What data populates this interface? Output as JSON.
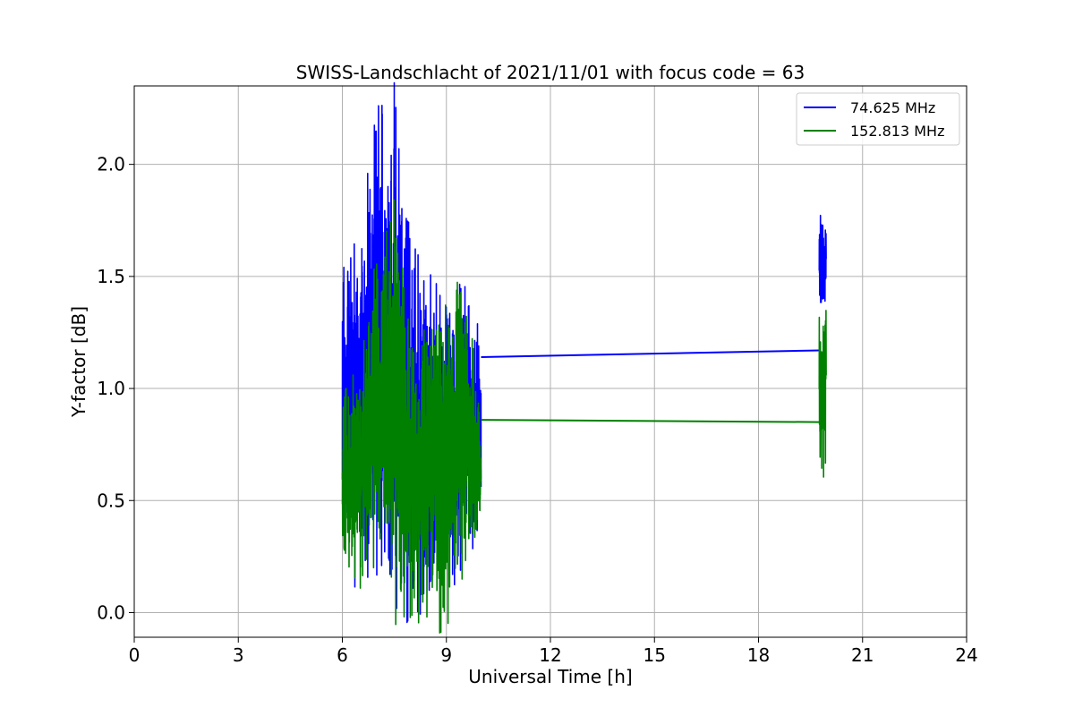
{
  "chart_data": {
    "type": "line",
    "title": "SWISS-Landschlacht of 2021/11/01 with focus code = 63",
    "xlabel": "Universal Time [h]",
    "ylabel": "Y-factor [dB]",
    "xlim": [
      0,
      24
    ],
    "ylim": [
      -0.11,
      2.35
    ],
    "xticks": [
      0,
      3,
      6,
      9,
      12,
      15,
      18,
      21,
      24
    ],
    "xtick_labels": [
      "0",
      "3",
      "6",
      "9",
      "12",
      "15",
      "18",
      "21",
      "24"
    ],
    "yticks": [
      0.0,
      0.5,
      1.0,
      1.5,
      2.0
    ],
    "ytick_labels": [
      "0.0",
      "0.5",
      "1.0",
      "1.5",
      "2.0"
    ],
    "grid": true,
    "legend_position": "top-right",
    "series": [
      {
        "name": "74.625 MHz",
        "legend_label": "  74.625 MHz",
        "color": "#0000ff",
        "bursts": [
          {
            "x_start": 6.0,
            "x_end": 10.0,
            "envelope": [
              [
                6.0,
                0.3,
                1.5
              ],
              [
                6.5,
                0.25,
                1.6
              ],
              [
                7.0,
                0.3,
                2.2
              ],
              [
                7.5,
                0.15,
                2.2
              ],
              [
                8.0,
                0.0,
                1.6
              ],
              [
                8.5,
                0.1,
                1.4
              ],
              [
                9.0,
                0.2,
                1.3
              ],
              [
                9.5,
                0.3,
                1.4
              ],
              [
                10.0,
                0.45,
                1.15
              ]
            ]
          },
          {
            "x_start": 19.75,
            "x_end": 19.95,
            "envelope": [
              [
                19.75,
                1.4,
                1.8
              ],
              [
                19.95,
                1.4,
                1.7
              ]
            ]
          }
        ],
        "gap_segment": [
          [
            10.0,
            1.14
          ],
          [
            19.75,
            1.17
          ]
        ]
      },
      {
        "name": "152.813 MHz",
        "legend_label": "152.813 MHz",
        "color": "#008000",
        "bursts": [
          {
            "x_start": 6.0,
            "x_end": 10.0,
            "envelope": [
              [
                6.0,
                0.25,
                0.9
              ],
              [
                6.5,
                0.2,
                1.1
              ],
              [
                7.0,
                0.25,
                1.6
              ],
              [
                7.5,
                0.15,
                1.7
              ],
              [
                8.0,
                0.05,
                1.2
              ],
              [
                8.5,
                0.05,
                1.2
              ],
              [
                9.0,
                0.0,
                1.5
              ],
              [
                9.5,
                0.2,
                1.4
              ],
              [
                10.0,
                0.4,
                0.86
              ]
            ]
          },
          {
            "x_start": 19.75,
            "x_end": 19.95,
            "envelope": [
              [
                19.75,
                0.7,
                1.3
              ],
              [
                19.95,
                0.63,
                1.38
              ]
            ]
          }
        ],
        "gap_segment": [
          [
            10.0,
            0.86
          ],
          [
            19.75,
            0.85
          ]
        ]
      }
    ]
  }
}
